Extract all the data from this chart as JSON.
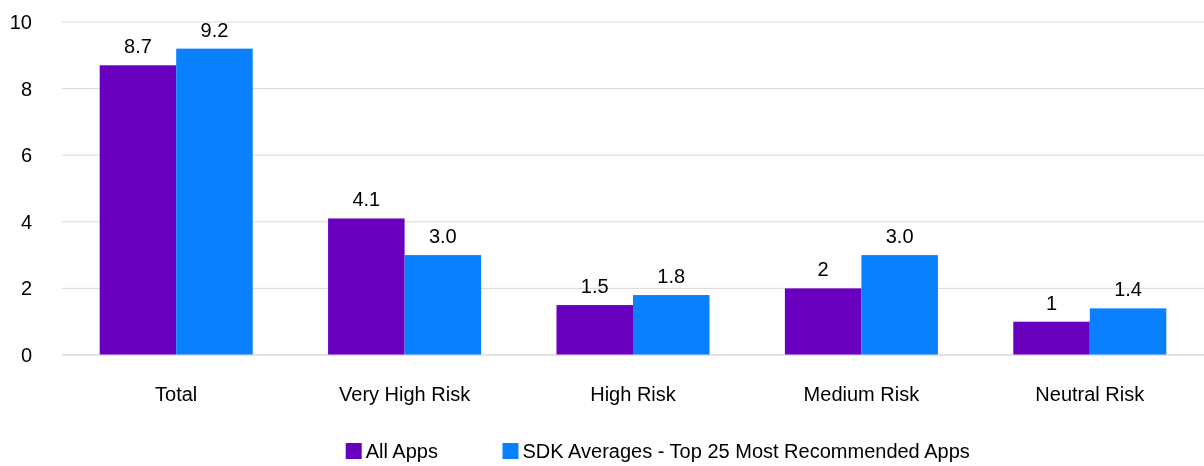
{
  "chart_data": {
    "type": "bar",
    "categories": [
      "Total",
      "Very High Risk",
      "High Risk",
      "Medium Risk",
      "Neutral Risk"
    ],
    "series": [
      {
        "name": "All Apps",
        "color": "#6a00bf",
        "values": [
          8.7,
          4.1,
          1.5,
          2,
          1
        ],
        "value_labels": [
          "8.7",
          "4.1",
          "1.5",
          "2",
          "1"
        ]
      },
      {
        "name": "SDK Averages - Top 25 Most Recommended Apps",
        "color": "#0a80ff",
        "values": [
          9.2,
          3.0,
          1.8,
          3.0,
          1.4
        ],
        "value_labels": [
          "9.2",
          "3.0",
          "1.8",
          "3.0",
          "1.4"
        ]
      }
    ],
    "ylim": [
      0,
      10
    ],
    "yticks": [
      0,
      2,
      4,
      6,
      8,
      10
    ],
    "grid": "y",
    "legend": "bottom"
  }
}
